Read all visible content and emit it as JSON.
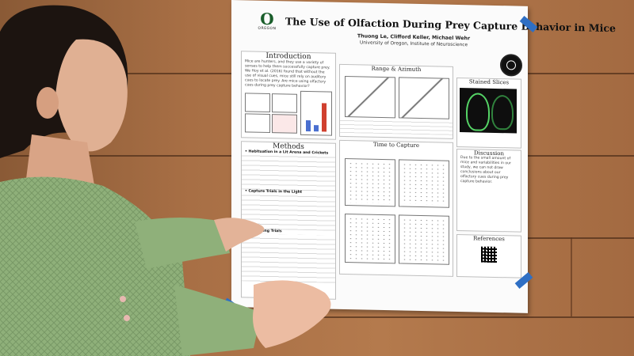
{
  "poster": {
    "title": "The Use of Olfaction During Prey Capture Behavior in Mice",
    "authors": "Thuong Le, Clifford Keller, Michael Wehr",
    "affiliation": "University of Oregon, Institute of Neuroscience",
    "logo_text": "OREGON",
    "logo_mark": "O",
    "sections": {
      "introduction": "Introduction",
      "methods": "Methods",
      "range_azimuth": "Range & Azimuth",
      "time_to_capture": "Time to Capture",
      "stained_slices": "Stained Slices",
      "discussion": "Discussion",
      "references": "References"
    },
    "intro_text": "Mice are hunters, and they use a variety of senses to help them successfully capture prey. We Hoy et al. (2016) found that without the use of visual cues, mice still rely on auditory cues to locate prey. Are mice using olfactory cues during prey capture behavior?",
    "methods_items": [
      "Habituation in a Lit Arena and Crickets",
      "Capture Trials in the Light",
      "Deafening Trials"
    ],
    "discussion_text": "Due to the small amount of mice and variabilities in our study, we can not draw conclusions about our olfactory cues during prey capture behavior."
  },
  "colors": {
    "wall": "#a86f45",
    "oregon_green": "#1a5e2b",
    "tape": "#2f6fc4",
    "sweater": "#8fb07a"
  }
}
